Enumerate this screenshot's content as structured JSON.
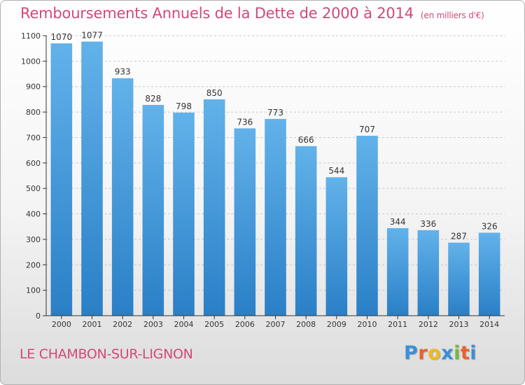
{
  "title": "Remboursements Annuels de la Dette de 2000 à 2014",
  "unit": "(en milliers d'€)",
  "place": "LE CHAMBON-SUR-LIGNON",
  "logo": {
    "letters": [
      "P",
      "r",
      "o",
      "x",
      "i",
      "t",
      "i"
    ],
    "colors": [
      "#3a8fd6",
      "#e8632b",
      "#f2b81e",
      "#3a8fd6",
      "#7ab83c",
      "#e8632b",
      "#3a8fd6"
    ]
  },
  "colors": {
    "bar_light": "#62b2ea",
    "bar_dark": "#2a7fc6",
    "title": "#d2487a",
    "axis": "#333333"
  },
  "chart_data": {
    "type": "bar",
    "title": "Remboursements Annuels de la Dette de 2000 à 2014",
    "xlabel": "",
    "ylabel": "",
    "ylim": [
      0,
      1100
    ],
    "yticks": [
      0,
      100,
      200,
      300,
      400,
      500,
      600,
      700,
      800,
      900,
      1000,
      1100
    ],
    "grid": true,
    "categories": [
      "2000",
      "2001",
      "2002",
      "2003",
      "2004",
      "2005",
      "2006",
      "2007",
      "2008",
      "2009",
      "2010",
      "2011",
      "2012",
      "2013",
      "2014"
    ],
    "values": [
      1070,
      1077,
      933,
      828,
      798,
      850,
      736,
      773,
      666,
      544,
      707,
      344,
      336,
      287,
      326
    ]
  }
}
